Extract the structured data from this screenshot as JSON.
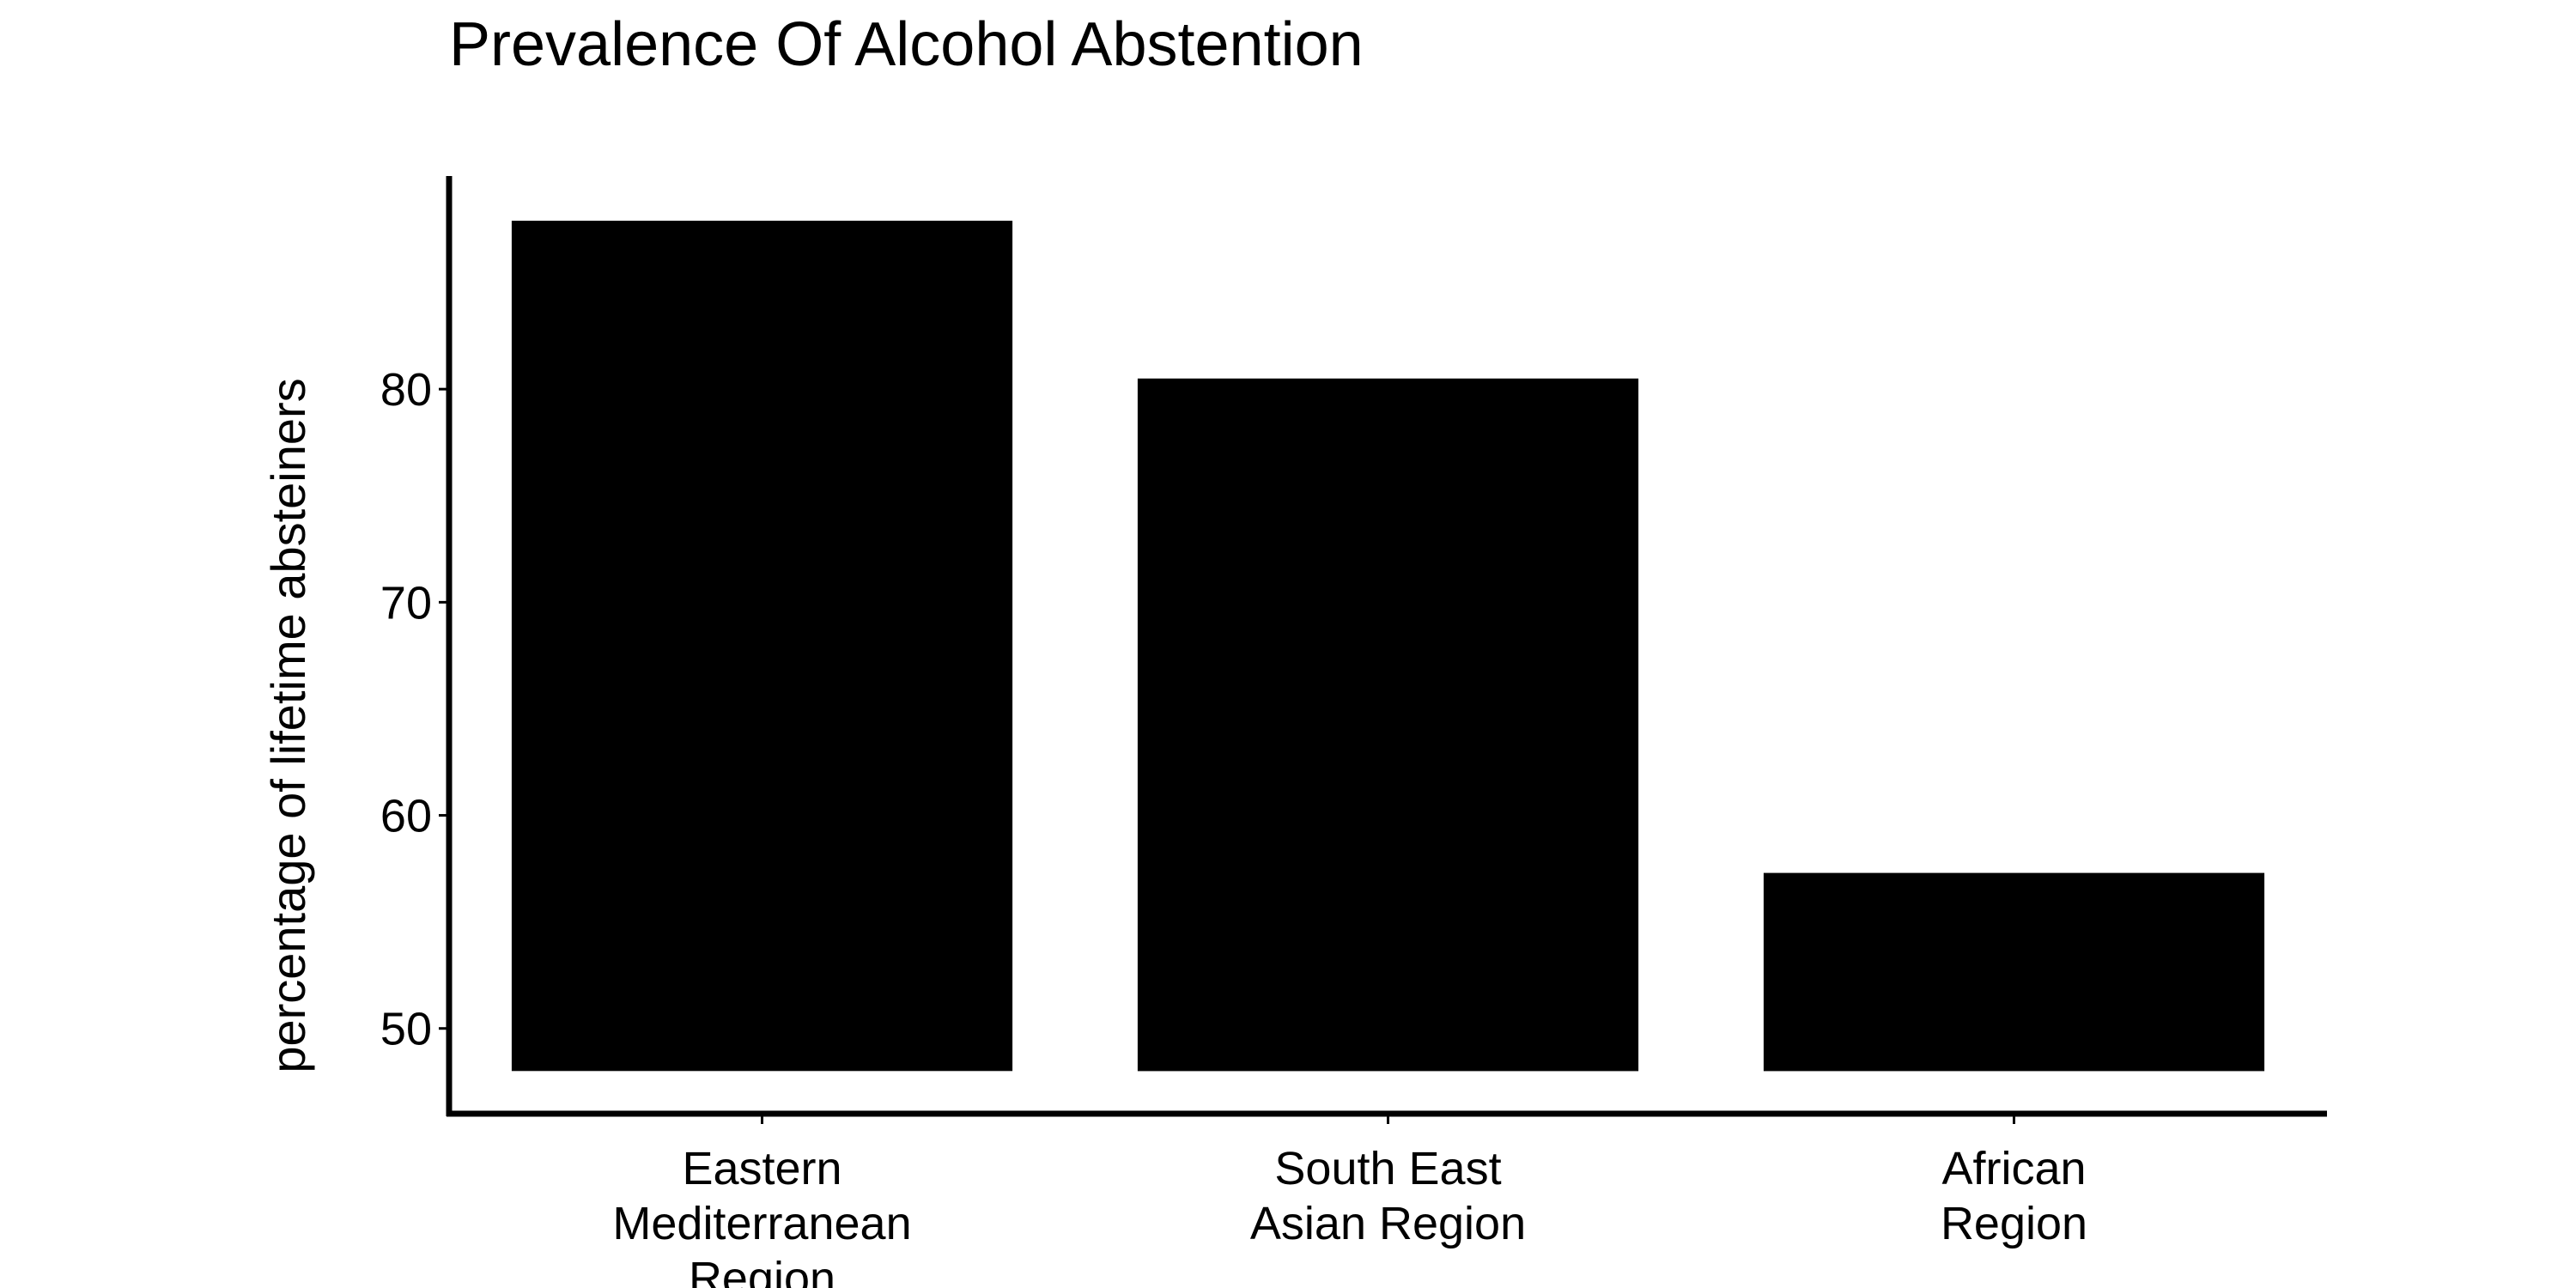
{
  "chart_data": {
    "type": "bar",
    "title": "Prevalence Of Alcohol Abstention",
    "xlabel": "",
    "ylabel": "percentage of lifetime absteiners",
    "categories": [
      [
        "Eastern",
        "Mediterranean",
        "Region"
      ],
      [
        "South East",
        "Asian Region"
      ],
      [
        "African",
        "Region"
      ]
    ],
    "values": [
      87.9,
      80.5,
      57.3
    ],
    "ylim": [
      46,
      90
    ],
    "bar_baseline": 48,
    "yticks": [
      50,
      60,
      70,
      80
    ],
    "grid": false,
    "legend": "none",
    "bar_color": "#000000",
    "axis_color": "#000000"
  }
}
